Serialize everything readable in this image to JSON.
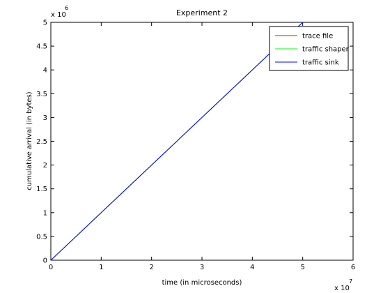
{
  "chart_data": {
    "type": "line",
    "title": "Experiment 2",
    "xlabel": "time (in microseconds)",
    "ylabel": "cumulative arrival (in bytes)",
    "x_multiplier": "x 10",
    "x_multiplier_exp": "7",
    "y_multiplier": "x 10",
    "y_multiplier_exp": "6",
    "xlim": [
      0,
      6
    ],
    "ylim": [
      0,
      5
    ],
    "xticks": [
      "0",
      "1",
      "2",
      "3",
      "4",
      "5",
      "6"
    ],
    "yticks": [
      "0",
      "0.5",
      "1",
      "1.5",
      "2",
      "2.5",
      "3",
      "3.5",
      "4",
      "4.5",
      "5"
    ],
    "grid": false,
    "legend_position": "top-right",
    "series": [
      {
        "name": "trace file",
        "color": "#ff0000",
        "x": [
          0,
          5.0
        ],
        "y": [
          0,
          5.0
        ]
      },
      {
        "name": "traffic shaper",
        "color": "#00ff00",
        "x": [
          0,
          5.0
        ],
        "y": [
          0,
          5.0
        ]
      },
      {
        "name": "traffic sink",
        "color": "#0000ff",
        "x": [
          0,
          5.0
        ],
        "y": [
          0,
          5.0
        ]
      }
    ]
  }
}
